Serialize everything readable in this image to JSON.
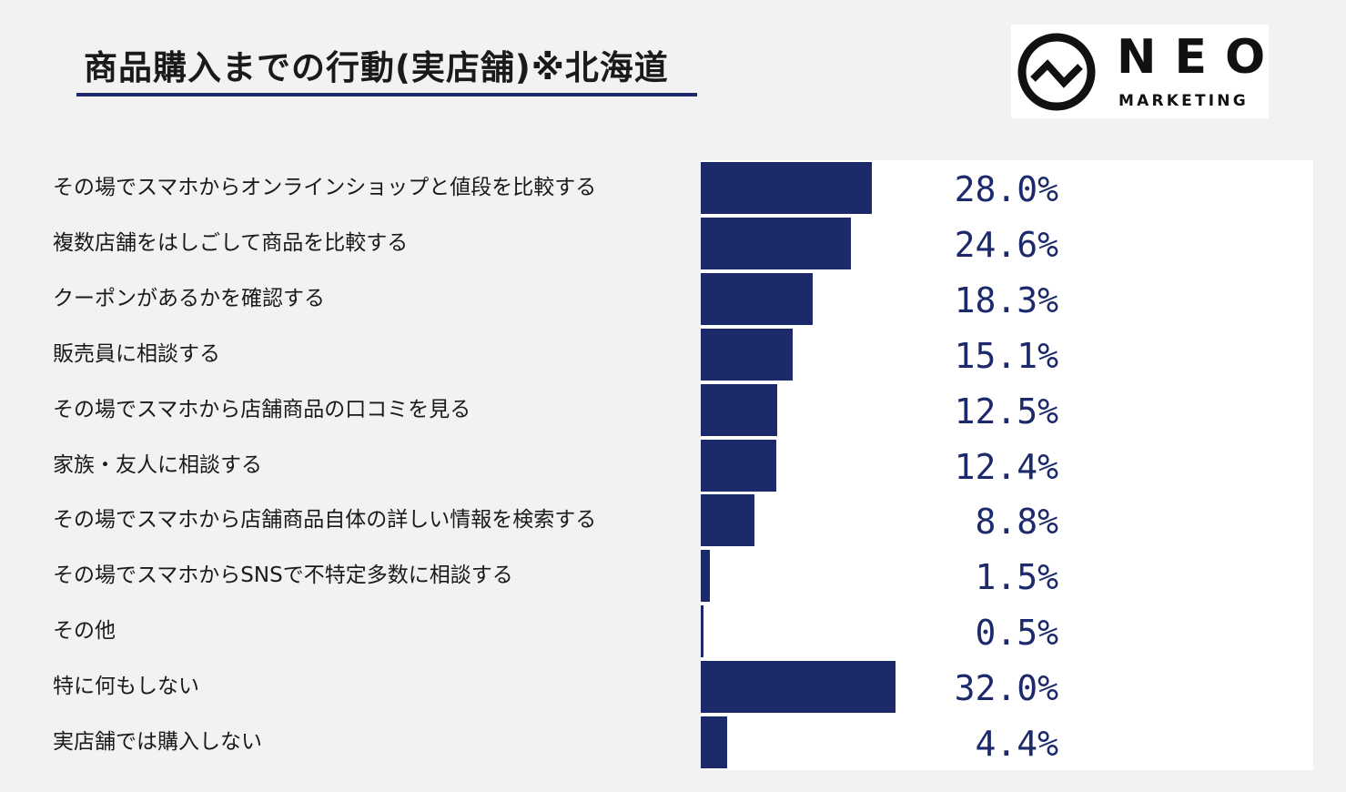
{
  "header": {
    "title": "商品購入までの行動(実店舗)※北海道"
  },
  "logo": {
    "name": "NEO",
    "sub": "MARKETING"
  },
  "colors": {
    "bar": "#1c2a6b",
    "value_text": "#1c2a6b",
    "background": "#f2f2f2",
    "plot_background": "#ffffff"
  },
  "chart_data": {
    "type": "bar",
    "orientation": "horizontal",
    "categories": [
      "その場でスマホからオンラインショップと値段を比較する",
      "複数店舗をはしごして商品を比較する",
      "クーポンがあるかを確認する",
      "販売員に相談する",
      "その場でスマホから店舗商品の口コミを見る",
      "家族・友人に相談する",
      "その場でスマホから店舗商品自体の詳しい情報を検索する",
      "その場でスマホからSNSで不特定多数に相談する",
      "その他",
      "特に何もしない",
      "実店舗では購入しない"
    ],
    "values": [
      28.0,
      24.6,
      18.3,
      15.1,
      12.5,
      12.4,
      8.8,
      1.5,
      0.5,
      32.0,
      4.4
    ],
    "value_labels": [
      "28.0%",
      "24.6%",
      "18.3%",
      "15.1%",
      "12.5%",
      "12.4%",
      "8.8%",
      "1.5%",
      "0.5%",
      "32.0%",
      "4.4%"
    ],
    "unit": "%",
    "xlim": [
      0,
      100
    ],
    "grid": false,
    "legend": "none"
  }
}
